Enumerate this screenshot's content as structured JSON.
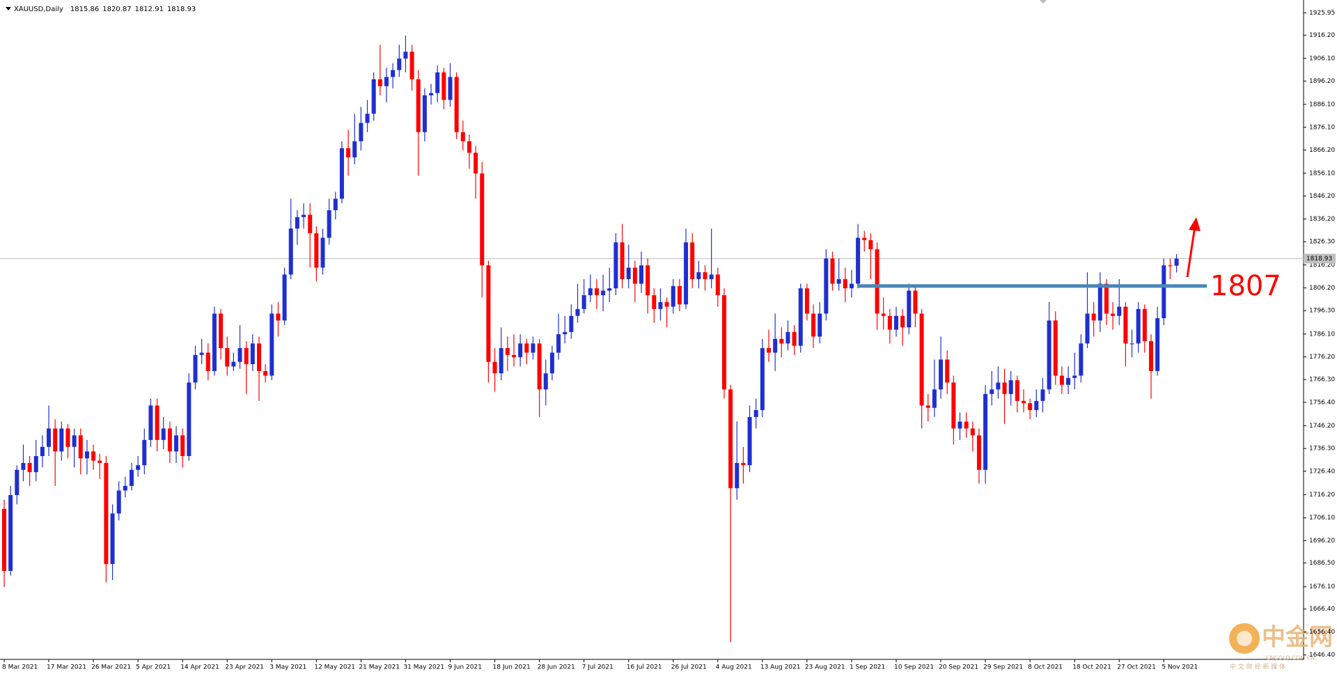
{
  "chart_data": {
    "type": "candlestick",
    "title": "XAUUSD,Daily",
    "categories": [
      "8 Mar 2021",
      null,
      null,
      null,
      null,
      null,
      null,
      "17 Mar 2021",
      null,
      null,
      null,
      null,
      null,
      null,
      "26 Mar 2021",
      null,
      null,
      null,
      null,
      null,
      null,
      "5 Apr 2021",
      null,
      null,
      null,
      null,
      null,
      null,
      "14 Apr 2021",
      null,
      null,
      null,
      null,
      null,
      null,
      "23 Apr 2021",
      null,
      null,
      null,
      null,
      null,
      null,
      "3 May 2021",
      null,
      null,
      null,
      null,
      null,
      null,
      "12 May 2021",
      null,
      null,
      null,
      null,
      null,
      null,
      "21 May 2021",
      null,
      null,
      null,
      null,
      null,
      null,
      "31 May 2021",
      null,
      null,
      null,
      null,
      null,
      null,
      "9 Jun 2021",
      null,
      null,
      null,
      null,
      null,
      null,
      "18 Jun 2021",
      null,
      null,
      null,
      null,
      null,
      null,
      "28 Jun 2021",
      null,
      null,
      null,
      null,
      null,
      null,
      "7 Jul 2021",
      null,
      null,
      null,
      null,
      null,
      null,
      "16 Jul 2021",
      null,
      null,
      null,
      null,
      null,
      null,
      "26 Jul 2021",
      null,
      null,
      null,
      null,
      null,
      null,
      "4 Aug 2021",
      null,
      null,
      null,
      null,
      null,
      null,
      "13 Aug 2021",
      null,
      null,
      null,
      null,
      null,
      null,
      "23 Aug 2021",
      null,
      null,
      null,
      null,
      null,
      null,
      "1 Sep 2021",
      null,
      null,
      null,
      null,
      null,
      null,
      "10 Sep 2021",
      null,
      null,
      null,
      null,
      null,
      null,
      "20 Sep 2021",
      null,
      null,
      null,
      null,
      null,
      null,
      "29 Sep 2021",
      null,
      null,
      null,
      null,
      null,
      null,
      "8 Oct 2021",
      null,
      null,
      null,
      null,
      null,
      null,
      "18 Oct 2021",
      null,
      null,
      null,
      null,
      null,
      null,
      "27 Oct 2021",
      null,
      null,
      null,
      null,
      null,
      null,
      "5 Nov 2021",
      null,
      null
    ],
    "open": [
      1710,
      1683,
      1716,
      1727,
      1730,
      1726,
      1733,
      1737,
      1745,
      1735,
      1745,
      1737,
      1742,
      1732,
      1735,
      1731,
      1730,
      1686,
      1708,
      1718,
      1720,
      1727,
      1729,
      1740,
      1755,
      1740,
      1745,
      1735,
      1742,
      1733,
      1765,
      1777,
      1778,
      1770,
      1795,
      1780,
      1772,
      1774,
      1780,
      1773,
      1782,
      1770,
      1768,
      1795,
      1792,
      1812,
      1832,
      1837,
      1838,
      1830,
      1815,
      1828,
      1840,
      1845,
      1867,
      1863,
      1870,
      1878,
      1882,
      1897,
      1894,
      1898,
      1901,
      1906,
      1909,
      1897,
      1874,
      1890,
      1891,
      1900,
      1888,
      1898,
      1874,
      1870,
      1865,
      1856,
      1816,
      1774,
      1769,
      1780,
      1777,
      1776,
      1782,
      1778,
      1782,
      1762,
      1769,
      1778,
      1786,
      1787,
      1794,
      1797,
      1803,
      1806,
      1803,
      1805,
      1806,
      1826,
      1810,
      1815,
      1808,
      1816,
      1803,
      1797,
      1800,
      1798,
      1807,
      1799,
      1826,
      1810,
      1813,
      1810,
      1812,
      1803,
      1762,
      1719,
      1730,
      1729,
      1750,
      1753,
      1780,
      1778,
      1784,
      1782,
      1787,
      1781,
      1806,
      1795,
      1785,
      1795,
      1819,
      1808,
      1810,
      1806,
      1808,
      1828,
      1827,
      1823,
      1795,
      1794,
      1788,
      1794,
      1789,
      1805,
      1795,
      1755,
      1754,
      1762,
      1775,
      1765,
      1745,
      1748,
      1745,
      1742,
      1727,
      1760,
      1762,
      1765,
      1760,
      1766,
      1757,
      1756,
      1753,
      1757,
      1762,
      1792,
      1768,
      1764,
      1767,
      1768,
      1782,
      1795,
      1792,
      1808,
      1795,
      1794,
      1798,
      1782,
      1782,
      1797,
      1783,
      1770,
      1793,
      1816,
      1815.86
    ],
    "high": [
      1714,
      1720,
      1729,
      1738,
      1733,
      1740,
      1742,
      1755,
      1749,
      1748,
      1747,
      1745,
      1745,
      1740,
      1738,
      1734,
      1733,
      1712,
      1722,
      1724,
      1730,
      1733,
      1745,
      1758,
      1758,
      1750,
      1748,
      1746,
      1745,
      1769,
      1781,
      1784,
      1782,
      1798,
      1797,
      1785,
      1778,
      1790,
      1783,
      1786,
      1785,
      1773,
      1799,
      1800,
      1815,
      1845,
      1840,
      1843,
      1843,
      1833,
      1832,
      1845,
      1848,
      1870,
      1875,
      1882,
      1885,
      1888,
      1900,
      1912,
      1902,
      1904,
      1912,
      1916,
      1912,
      1901,
      1893,
      1895,
      1903,
      1902,
      1904,
      1900,
      1879,
      1873,
      1868,
      1861,
      1818,
      1780,
      1789,
      1785,
      1786,
      1786,
      1784,
      1785,
      1784,
      1775,
      1781,
      1795,
      1794,
      1799,
      1808,
      1810,
      1812,
      1810,
      1812,
      1815,
      1830,
      1834,
      1825,
      1818,
      1822,
      1819,
      1806,
      1806,
      1802,
      1810,
      1810,
      1832,
      1830,
      1818,
      1816,
      1832,
      1815,
      1806,
      1764,
      1748,
      1737,
      1755,
      1758,
      1784,
      1788,
      1795,
      1789,
      1792,
      1790,
      1808,
      1808,
      1799,
      1800,
      1823,
      1822,
      1819,
      1815,
      1814,
      1834,
      1831,
      1830,
      1826,
      1802,
      1797,
      1798,
      1797,
      1808,
      1807,
      1797,
      1760,
      1775,
      1785,
      1779,
      1768,
      1752,
      1752,
      1748,
      1745,
      1764,
      1770,
      1772,
      1771,
      1770,
      1768,
      1762,
      1758,
      1762,
      1767,
      1800,
      1796,
      1772,
      1772,
      1778,
      1786,
      1813,
      1800,
      1813,
      1810,
      1800,
      1810,
      1800,
      1788,
      1800,
      1799,
      1786,
      1798,
      1819,
      1819,
      1820.87
    ],
    "low": [
      1676,
      1681,
      1712,
      1722,
      1720,
      1722,
      1728,
      1733,
      1720,
      1731,
      1732,
      1728,
      1725,
      1725,
      1727,
      1723,
      1678,
      1679,
      1705,
      1715,
      1718,
      1724,
      1725,
      1737,
      1735,
      1736,
      1730,
      1730,
      1728,
      1731,
      1762,
      1773,
      1766,
      1768,
      1775,
      1768,
      1770,
      1771,
      1760,
      1770,
      1757,
      1765,
      1766,
      1785,
      1790,
      1810,
      1825,
      1832,
      1815,
      1809,
      1812,
      1825,
      1836,
      1843,
      1855,
      1860,
      1866,
      1874,
      1879,
      1890,
      1887,
      1893,
      1898,
      1900,
      1892,
      1855,
      1870,
      1886,
      1887,
      1884,
      1885,
      1871,
      1866,
      1858,
      1845,
      1802,
      1765,
      1761,
      1766,
      1770,
      1772,
      1772,
      1773,
      1775,
      1750,
      1755,
      1766,
      1775,
      1782,
      1784,
      1791,
      1795,
      1800,
      1797,
      1796,
      1800,
      1803,
      1806,
      1806,
      1800,
      1804,
      1795,
      1791,
      1792,
      1789,
      1795,
      1796,
      1797,
      1806,
      1806,
      1805,
      1806,
      1798,
      1758,
      1652,
      1714,
      1721,
      1726,
      1745,
      1750,
      1774,
      1770,
      1776,
      1779,
      1777,
      1778,
      1792,
      1780,
      1782,
      1792,
      1805,
      1805,
      1800,
      1802,
      1806,
      1822,
      1810,
      1788,
      1788,
      1782,
      1785,
      1781,
      1786,
      1789,
      1745,
      1748,
      1750,
      1758,
      1760,
      1738,
      1740,
      1741,
      1735,
      1721,
      1721,
      1755,
      1758,
      1747,
      1755,
      1752,
      1752,
      1749,
      1750,
      1752,
      1760,
      1764,
      1760,
      1760,
      1762,
      1765,
      1780,
      1785,
      1787,
      1790,
      1788,
      1790,
      1772,
      1776,
      1778,
      1778,
      1758,
      1768,
      1790,
      1810,
      1812.91
    ],
    "close": [
      1683,
      1716,
      1727,
      1730,
      1726,
      1733,
      1737,
      1745,
      1735,
      1745,
      1737,
      1742,
      1732,
      1735,
      1731,
      1730,
      1686,
      1708,
      1718,
      1720,
      1727,
      1729,
      1740,
      1755,
      1740,
      1745,
      1735,
      1742,
      1733,
      1765,
      1777,
      1778,
      1770,
      1795,
      1780,
      1772,
      1774,
      1780,
      1773,
      1782,
      1770,
      1768,
      1795,
      1792,
      1812,
      1832,
      1837,
      1838,
      1830,
      1815,
      1828,
      1840,
      1845,
      1867,
      1863,
      1870,
      1878,
      1882,
      1897,
      1894,
      1898,
      1901,
      1906,
      1909,
      1897,
      1874,
      1890,
      1891,
      1900,
      1888,
      1898,
      1874,
      1870,
      1865,
      1856,
      1816,
      1774,
      1769,
      1780,
      1777,
      1776,
      1782,
      1778,
      1782,
      1762,
      1769,
      1778,
      1786,
      1787,
      1794,
      1797,
      1803,
      1806,
      1803,
      1805,
      1806,
      1826,
      1810,
      1815,
      1808,
      1816,
      1803,
      1797,
      1800,
      1798,
      1807,
      1799,
      1826,
      1810,
      1813,
      1810,
      1812,
      1803,
      1762,
      1719,
      1730,
      1729,
      1750,
      1753,
      1780,
      1778,
      1784,
      1782,
      1787,
      1781,
      1806,
      1795,
      1785,
      1795,
      1819,
      1808,
      1810,
      1806,
      1808,
      1828,
      1827,
      1823,
      1795,
      1794,
      1788,
      1794,
      1789,
      1805,
      1795,
      1755,
      1754,
      1762,
      1775,
      1765,
      1745,
      1748,
      1745,
      1742,
      1727,
      1760,
      1762,
      1765,
      1760,
      1766,
      1757,
      1756,
      1753,
      1757,
      1762,
      1792,
      1768,
      1764,
      1767,
      1768,
      1782,
      1795,
      1792,
      1808,
      1795,
      1794,
      1798,
      1782,
      1782,
      1797,
      1783,
      1770,
      1793,
      1816,
      1815.86,
      1818.93
    ],
    "up_color": "#1f2fd0",
    "down_color": "#ff0000",
    "ylim": [
      1644.5,
      1931.5
    ],
    "yticks": [
      1925.95,
      {
        "value": 1916.2,
        "label": "1916.20"
      },
      {
        "value": 1906.1,
        "label": "1906.10"
      },
      {
        "value": 1896.2,
        "label": "1896.20"
      },
      {
        "value": 1886.1,
        "label": "1886.10"
      },
      {
        "value": 1876.1,
        "label": "1876.10"
      },
      {
        "value": 1866.2,
        "label": "1866.20"
      },
      {
        "value": 1856.1,
        "label": "1856.10"
      },
      {
        "value": 1846.2,
        "label": "1846.20"
      },
      {
        "value": 1836.2,
        "label": "1836.20"
      },
      {
        "value": 1826.3,
        "label": "1826.30"
      },
      {
        "value": 1816.2,
        "label": "1816.20"
      },
      {
        "value": 1806.2,
        "label": "1806.20"
      },
      {
        "value": 1796.3,
        "label": "1796.30"
      },
      {
        "value": 1786.1,
        "label": "1786.10"
      },
      {
        "value": 1776.2,
        "label": "1776.20"
      },
      {
        "value": 1766.3,
        "label": "1766.30"
      },
      {
        "value": 1756.4,
        "label": "1756.40"
      },
      {
        "value": 1746.2,
        "label": "1746.20"
      },
      {
        "value": 1736.3,
        "label": "1736.30"
      },
      {
        "value": 1726.4,
        "label": "1726.40"
      },
      {
        "value": 1716.2,
        "label": "1716.20"
      },
      {
        "value": 1706.1,
        "label": "1706.10"
      },
      {
        "value": 1696.2,
        "label": "1696.20"
      },
      {
        "value": 1686.5,
        "label": "1686.50"
      },
      {
        "value": 1676.1,
        "label": "1676.10"
      },
      {
        "value": 1666.4,
        "label": "1666.40"
      },
      {
        "value": 1656.4,
        "label": "1656.40"
      },
      {
        "value": 1646.4,
        "label": "1646.40"
      }
    ],
    "grid": false,
    "level": 1807,
    "level_color": "#4a86b8"
  },
  "watermark": {
    "name": "中金网",
    "domain": "CNGOLD.COM.CN",
    "slogan": "中 文 财 经 新 媒 体"
  }
}
